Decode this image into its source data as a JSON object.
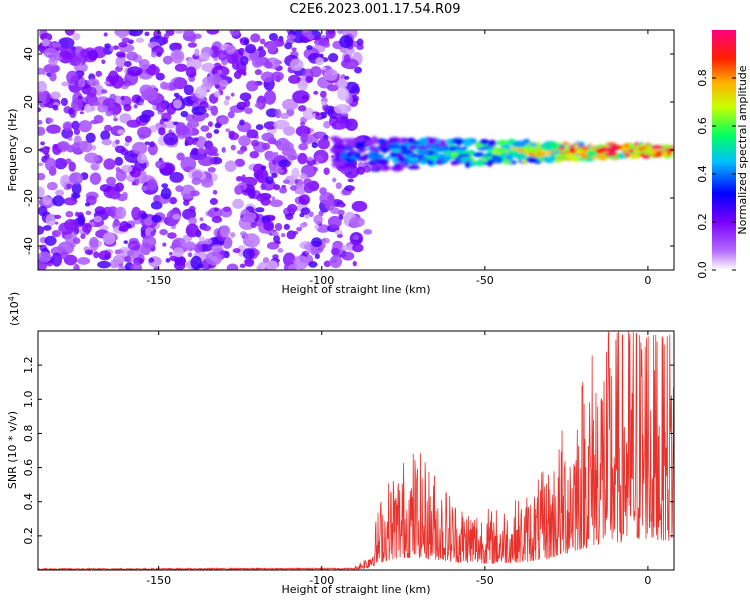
{
  "figure_title": "C2E6.2023.001.17.54.R09",
  "colors": {
    "snr_line": "#e8322c",
    "colormap": [
      "#ffffff",
      "#8b00ff",
      "#0000ff",
      "#00ffff",
      "#00ff00",
      "#ffff00",
      "#ff0000",
      "#ff00aa"
    ]
  },
  "chart_data": [
    {
      "type": "heatmap",
      "xlabel": "Height of straight line (km)",
      "ylabel": "Frequency (Hz)",
      "xlim": [
        -187,
        8
      ],
      "ylim": [
        -50,
        50
      ],
      "x_ticks": [
        -150,
        -100,
        -50,
        0
      ],
      "y_ticks": [
        -40,
        -20,
        0,
        20,
        40
      ],
      "colorbar": {
        "label": "Normalized spectral amplitude",
        "range": [
          0.0,
          1.0
        ],
        "ticks": [
          0.0,
          0.2,
          0.4,
          0.6,
          0.8
        ]
      },
      "regions": [
        {
          "name": "noise",
          "x_range": [
            -187,
            -88
          ],
          "freq_range": [
            -50,
            50
          ],
          "amplitude": 0.1
        },
        {
          "name": "signal",
          "x_start": -96,
          "x_end": 7,
          "freq_start": -2,
          "freq_end": 0,
          "amplitude_start": 0.35,
          "amplitude_end": 1.0
        }
      ]
    },
    {
      "type": "line",
      "xlabel": "Height of straight line (km)",
      "ylabel": "SNR (10 * v/v)",
      "y_multiplier": "(x10",
      "y_multiplier_exp": "4",
      "y_multiplier_close": ")",
      "xlim": [
        -187,
        8
      ],
      "ylim": [
        0,
        1.4
      ],
      "x_ticks": [
        -150,
        -100,
        -50,
        0
      ],
      "y_ticks": [
        0.2,
        0.4,
        0.6,
        0.8,
        1.0,
        1.2
      ],
      "envelope": {
        "x": [
          -187,
          -90,
          -86,
          -84,
          -82,
          -78,
          -72,
          -66,
          -58,
          -48,
          -38,
          -30,
          -24,
          -20,
          -16,
          -12,
          -6,
          -3,
          0,
          3,
          6,
          8
        ],
        "y": [
          0.005,
          0.008,
          0.04,
          0.1,
          0.18,
          0.25,
          0.3,
          0.25,
          0.17,
          0.15,
          0.18,
          0.26,
          0.4,
          0.5,
          0.58,
          0.62,
          0.66,
          0.7,
          0.72,
          0.7,
          0.68,
          0.66
        ]
      }
    }
  ]
}
